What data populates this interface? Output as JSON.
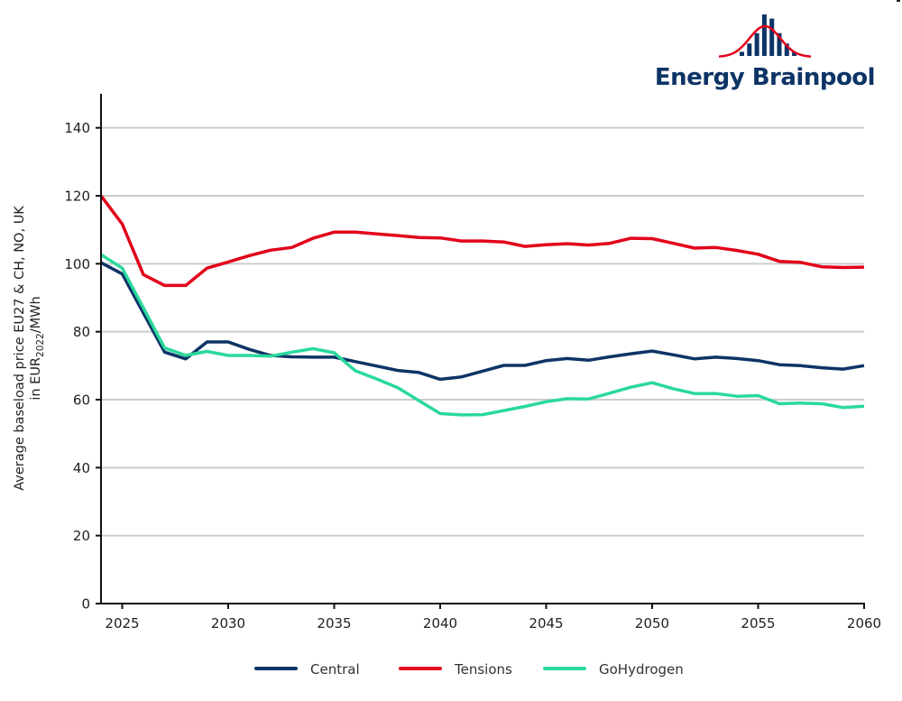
{
  "logo": {
    "text": "Energy Brainpool",
    "text_color": "#0d3466",
    "curve_color": "#e2001a",
    "bar_relative_heights": [
      0.1,
      0.3,
      0.55,
      1.0,
      0.9,
      0.55,
      0.3,
      0.1
    ]
  },
  "chart_data": {
    "type": "line",
    "title": "",
    "xlabel": "",
    "ylabel_line1": "Average baseload price EU27 & CH, NO, UK",
    "ylabel_line2_prefix": "in EUR",
    "ylabel_line2_sub": "2022",
    "ylabel_line2_suffix": "/MWh",
    "xlim": [
      2024,
      2060
    ],
    "ylim": [
      0,
      150
    ],
    "grid": true,
    "grid_axis": "y",
    "legend_position": "bottom-center",
    "x_ticks": [
      2025,
      2030,
      2035,
      2040,
      2045,
      2050,
      2055,
      2060
    ],
    "x_tick_labels": [
      "2025",
      "2030",
      "2035",
      "2040",
      "2045",
      "2050",
      "2055",
      "2060"
    ],
    "y_ticks": [
      0,
      20,
      40,
      60,
      80,
      100,
      120,
      140
    ],
    "y_tick_labels": [
      "0",
      "20",
      "40",
      "60",
      "80",
      "100",
      "120",
      "140"
    ],
    "x": [
      2024,
      2025,
      2026,
      2027,
      2028,
      2029,
      2030,
      2031,
      2032,
      2033,
      2034,
      2035,
      2036,
      2037,
      2038,
      2039,
      2040,
      2041,
      2042,
      2043,
      2044,
      2045,
      2046,
      2047,
      2048,
      2049,
      2050,
      2051,
      2052,
      2053,
      2054,
      2055,
      2056,
      2057,
      2058,
      2059,
      2060
    ],
    "series": [
      {
        "name": "Central",
        "color": "#0d3466",
        "values": [
          100.3,
          97,
          85.5,
          74,
          72,
          77,
          77,
          74.8,
          73,
          72.6,
          72.5,
          72.5,
          71.2,
          69.9,
          68.6,
          68,
          66,
          66.7,
          68.4,
          70.1,
          70.1,
          71.5,
          72.1,
          71.6,
          72.6,
          73.5,
          74.3,
          73.2,
          72,
          72.5,
          72.1,
          71.5,
          70.3,
          70,
          69.4,
          69,
          70
        ]
      },
      {
        "name": "Tensions",
        "color": "#e2001a",
        "values": [
          120,
          111.7,
          96.8,
          93.6,
          93.6,
          98.7,
          100.5,
          102.4,
          104,
          104.8,
          107.5,
          109.3,
          109.3,
          108.8,
          108.3,
          107.7,
          107.6,
          106.7,
          106.7,
          106.4,
          105.1,
          105.6,
          105.9,
          105.5,
          106,
          107.5,
          107.4,
          106,
          104.6,
          104.8,
          103.9,
          102.8,
          100.7,
          100.4,
          99.1,
          98.9,
          99
        ]
      },
      {
        "name": "GoHydrogen",
        "color": "#2ad99b",
        "values": [
          102.7,
          98.7,
          87,
          75.2,
          73,
          74.2,
          73,
          73,
          72.8,
          74,
          75,
          73.8,
          68.5,
          66.1,
          63.5,
          59.7,
          55.9,
          55.5,
          55.6,
          56.8,
          58,
          59.4,
          60.3,
          60.2,
          61.9,
          63.7,
          65,
          63.2,
          61.8,
          61.8,
          61,
          61.2,
          58.8,
          59,
          58.8,
          57.7,
          58.1
        ]
      }
    ],
    "axis_color": "#111111",
    "grid_color": "#cccccc"
  }
}
